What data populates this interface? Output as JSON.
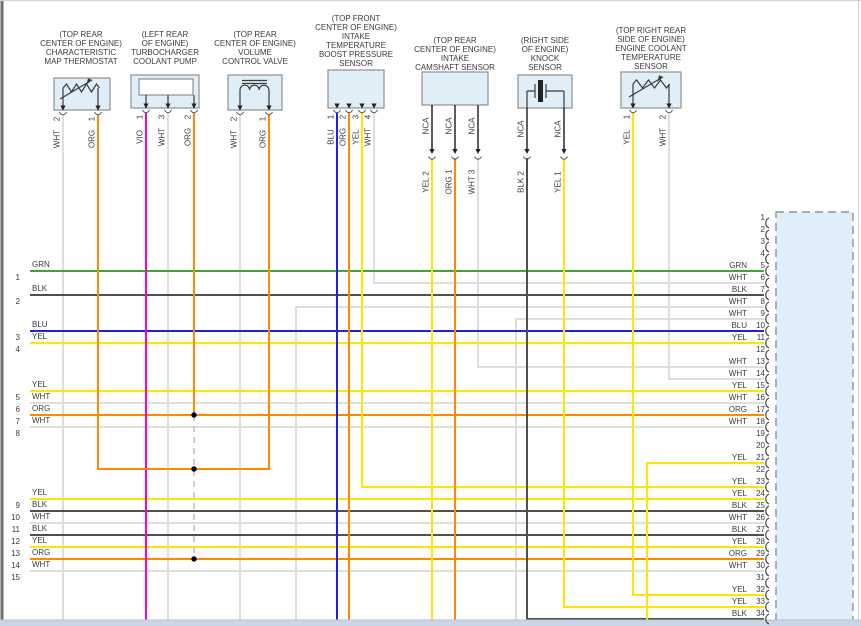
{
  "palette": {
    "GRN": "#3fa535",
    "BLK": "#4f4f4f",
    "WHT": "#dedede",
    "BLU": "#2020dd",
    "YEL": "#ffe600",
    "ORG": "#ff8a00",
    "VIO": "#ff00cc",
    "component_fill": "#dfeef7",
    "connector_fill": "#dfeef9",
    "splice_dot": "#000000"
  },
  "components": [
    {
      "id": "map-thermostat",
      "location_label": [
        "(TOP REAR",
        "CENTER OF ENGINE)",
        "CHARACTERISTIC",
        "MAP THERMOSTAT"
      ],
      "pins": [
        {
          "pin": "2",
          "wire": "WHT"
        },
        {
          "pin": "1",
          "wire": "ORG"
        }
      ]
    },
    {
      "id": "turbo-pump",
      "location_label": [
        "(LEFT REAR",
        "OF ENGINE)",
        "TURBOCHARGER",
        "COOLANT PUMP"
      ],
      "pins": [
        {
          "pin": "1",
          "wire": "VIO"
        },
        {
          "pin": "3",
          "wire": "WHT"
        },
        {
          "pin": "2",
          "wire": "ORG"
        }
      ]
    },
    {
      "id": "volume-control-valve",
      "location_label": [
        "(TOP REAR",
        "CENTER OF ENGINE)",
        "VOLUME",
        "CONTROL VALVE"
      ],
      "pins": [
        {
          "pin": "2",
          "wire": "WHT"
        },
        {
          "pin": "1",
          "wire": "ORG"
        }
      ]
    },
    {
      "id": "boost-sensor",
      "location_label": [
        "(TOP FRONT",
        "CENTER OF ENGINE)",
        "INTAKE",
        "TEMPERATURE",
        "BOOST PRESSURE",
        "SENSOR"
      ],
      "pins": [
        {
          "pin": "1",
          "wire": "BLU"
        },
        {
          "pin": "2",
          "wire": "ORG"
        },
        {
          "pin": "3",
          "wire": "YEL"
        },
        {
          "pin": "4",
          "wire": "WHT"
        }
      ]
    },
    {
      "id": "camshaft-sensor",
      "location_label": [
        "(TOP REAR",
        "CENTER OF ENGINE)",
        "INTAKE",
        "CAMSHAFT SENSOR"
      ],
      "nca_label": "NCA",
      "pins": [
        {
          "pin": "2",
          "wire": "YEL"
        },
        {
          "pin": "1",
          "wire": "ORG"
        },
        {
          "pin": "3",
          "wire": "WHT"
        }
      ]
    },
    {
      "id": "knock-sensor",
      "location_label": [
        "(RIGHT SIDE",
        "OF ENGINE)",
        "KNOCK",
        "SENSOR"
      ],
      "nca_label": "NCA",
      "pins": [
        {
          "pin": "2",
          "wire": "BLK"
        },
        {
          "pin": "1",
          "wire": "YEL"
        }
      ]
    },
    {
      "id": "ect-sensor",
      "location_label": [
        "(TOP RIGHT REAR",
        "SIDE OF ENGINE)",
        "ENGINE COOLANT",
        "TEMPERATURE",
        "SENSOR"
      ],
      "pins": [
        {
          "pin": "1",
          "wire": "YEL"
        },
        {
          "pin": "2",
          "wire": "WHT"
        }
      ]
    }
  ],
  "left_wires": [
    {
      "num": "1",
      "wire": "GRN"
    },
    {
      "num": "2",
      "wire": "BLK"
    },
    {
      "num": "3",
      "wire": "BLU"
    },
    {
      "num": "4",
      "wire": "YEL"
    },
    {
      "num": "5",
      "wire": "YEL"
    },
    {
      "num": "6",
      "wire": "WHT"
    },
    {
      "num": "7",
      "wire": "ORG"
    },
    {
      "num": "8",
      "wire": "WHT"
    },
    {
      "num": "9",
      "wire": "YEL"
    },
    {
      "num": "10",
      "wire": "BLK"
    },
    {
      "num": "11",
      "wire": "WHT"
    },
    {
      "num": "12",
      "wire": "BLK"
    },
    {
      "num": "13",
      "wire": "YEL"
    },
    {
      "num": "14",
      "wire": "ORG"
    },
    {
      "num": "15",
      "wire": "WHT"
    }
  ],
  "ecm_connector": {
    "pins": [
      {
        "num": "1",
        "wire": ""
      },
      {
        "num": "2",
        "wire": ""
      },
      {
        "num": "3",
        "wire": ""
      },
      {
        "num": "4",
        "wire": ""
      },
      {
        "num": "5",
        "wire": "GRN"
      },
      {
        "num": "6",
        "wire": "WHT"
      },
      {
        "num": "7",
        "wire": "BLK"
      },
      {
        "num": "8",
        "wire": "WHT"
      },
      {
        "num": "9",
        "wire": "WHT"
      },
      {
        "num": "10",
        "wire": "BLU"
      },
      {
        "num": "11",
        "wire": "YEL"
      },
      {
        "num": "12",
        "wire": ""
      },
      {
        "num": "13",
        "wire": "WHT"
      },
      {
        "num": "14",
        "wire": "WHT"
      },
      {
        "num": "15",
        "wire": "YEL"
      },
      {
        "num": "16",
        "wire": "WHT"
      },
      {
        "num": "17",
        "wire": "ORG"
      },
      {
        "num": "18",
        "wire": "WHT"
      },
      {
        "num": "19",
        "wire": ""
      },
      {
        "num": "20",
        "wire": ""
      },
      {
        "num": "21",
        "wire": "YEL"
      },
      {
        "num": "22",
        "wire": ""
      },
      {
        "num": "23",
        "wire": "YEL"
      },
      {
        "num": "24",
        "wire": "YEL"
      },
      {
        "num": "25",
        "wire": "BLK"
      },
      {
        "num": "26",
        "wire": "WHT"
      },
      {
        "num": "27",
        "wire": "BLK"
      },
      {
        "num": "28",
        "wire": "YEL"
      },
      {
        "num": "29",
        "wire": "ORG"
      },
      {
        "num": "30",
        "wire": "WHT"
      },
      {
        "num": "31",
        "wire": ""
      },
      {
        "num": "32",
        "wire": "YEL"
      },
      {
        "num": "33",
        "wire": "YEL"
      },
      {
        "num": "34",
        "wire": "BLK"
      }
    ]
  }
}
